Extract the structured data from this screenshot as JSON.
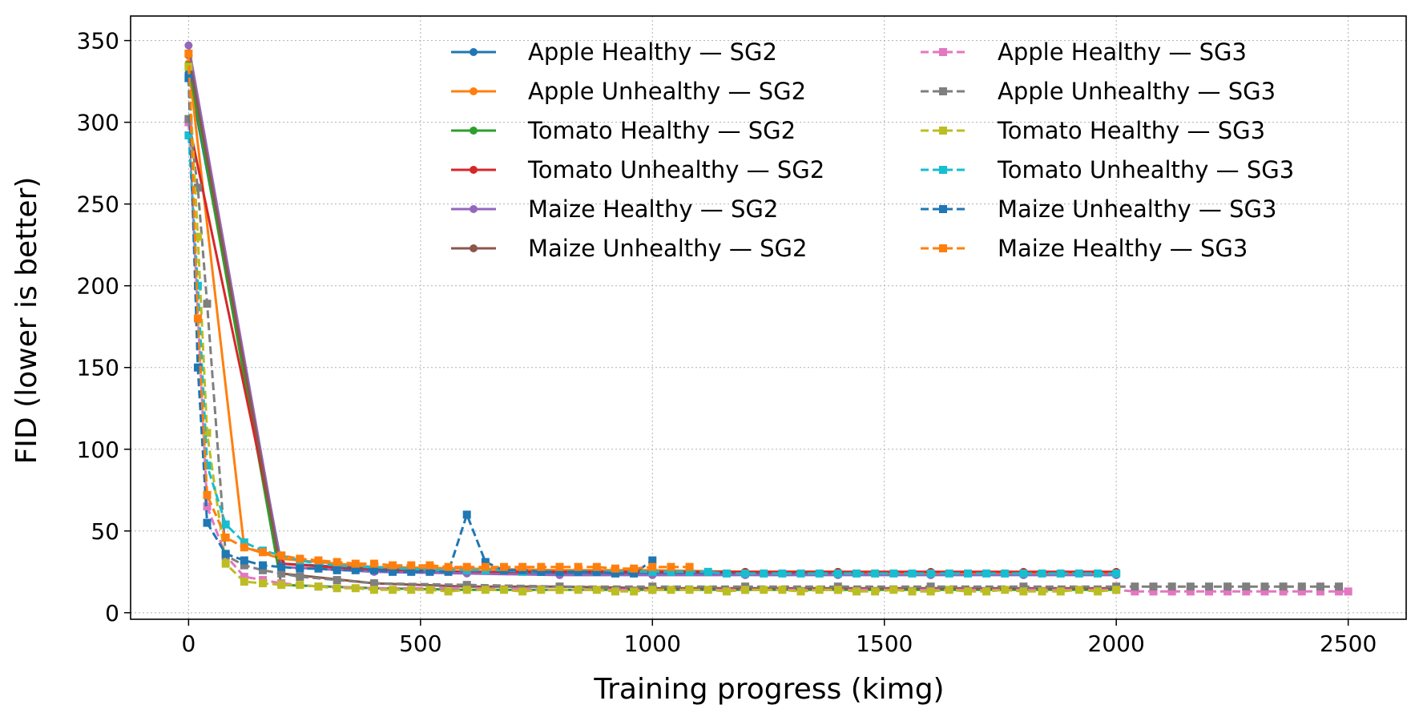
{
  "chart_data": {
    "type": "line",
    "title": "",
    "xlabel": "Training progress (kimg)",
    "ylabel": "FID (lower is better)",
    "xlim": [
      -125,
      2625
    ],
    "ylim": [
      -4,
      365
    ],
    "xticks": [
      0,
      500,
      1000,
      1500,
      2000,
      2500
    ],
    "yticks": [
      0,
      50,
      100,
      150,
      200,
      250,
      300,
      350
    ],
    "grid": true,
    "legend_position": "top-right",
    "legend_columns": 2,
    "series": [
      {
        "name": "Apple Healthy — SG2",
        "color": "#1f77b4",
        "style": "solid",
        "marker": "circle",
        "x": [
          0,
          200,
          400,
          600,
          800,
          1000,
          1200,
          1400,
          1600,
          1800,
          2000
        ],
        "y": [
          330,
          30,
          27,
          25,
          24,
          24,
          24,
          24,
          24,
          24,
          24
        ]
      },
      {
        "name": "Apple Unhealthy — SG2",
        "color": "#ff7f0e",
        "style": "solid",
        "marker": "circle",
        "x": [
          0,
          120,
          200,
          400,
          600,
          800,
          1000,
          1200,
          1400,
          1600,
          1800,
          2000
        ],
        "y": [
          336,
          40,
          33,
          28,
          27,
          26,
          26,
          25,
          25,
          24,
          24,
          24
        ]
      },
      {
        "name": "Tomato Healthy — SG2",
        "color": "#2ca02c",
        "style": "solid",
        "marker": "circle",
        "x": [
          0,
          200,
          400,
          600,
          800,
          1000,
          1200,
          1400,
          1600,
          1800,
          2000
        ],
        "y": [
          335,
          17,
          15,
          14,
          14,
          14,
          14,
          14,
          14,
          14,
          14
        ]
      },
      {
        "name": "Tomato Unhealthy — SG2",
        "color": "#d62728",
        "style": "solid",
        "marker": "circle",
        "x": [
          0,
          200,
          400,
          600,
          800,
          1000,
          1200,
          1400,
          1600,
          1800,
          2000
        ],
        "y": [
          300,
          30,
          26,
          25,
          25,
          25,
          25,
          25,
          25,
          25,
          25
        ]
      },
      {
        "name": "Maize Healthy — SG2",
        "color": "#9467bd",
        "style": "solid",
        "marker": "circle",
        "x": [
          0,
          200,
          400,
          600,
          800,
          1000,
          1200,
          1400,
          1600,
          1800,
          2000
        ],
        "y": [
          347,
          28,
          25,
          24,
          23,
          23,
          23,
          23,
          23,
          23,
          23
        ]
      },
      {
        "name": "Maize Unhealthy — SG2",
        "color": "#8c564b",
        "style": "solid",
        "marker": "circle",
        "x": [
          0,
          200,
          400,
          600,
          800,
          1000,
          1200,
          1400,
          1600,
          1800,
          2000
        ],
        "y": [
          341,
          24,
          18,
          16,
          16,
          15,
          15,
          15,
          15,
          15,
          15
        ]
      },
      {
        "name": "Apple Healthy — SG3",
        "color": "#e377c2",
        "style": "dashed",
        "marker": "square",
        "x": [
          0,
          40,
          80,
          120,
          160,
          200,
          280,
          400,
          600,
          800,
          1000,
          1200,
          1400,
          1600,
          1800,
          2000,
          2040,
          2080,
          2120,
          2160,
          2200,
          2240,
          2280,
          2320,
          2360,
          2400,
          2440,
          2480,
          2500
        ],
        "y": [
          300,
          65,
          35,
          22,
          20,
          18,
          16,
          15,
          15,
          14,
          14,
          14,
          14,
          14,
          14,
          14,
          13,
          13,
          13,
          13,
          13,
          13,
          13,
          13,
          13,
          13,
          13,
          13,
          13
        ]
      },
      {
        "name": "Apple Unhealthy — SG3",
        "color": "#7f7f7f",
        "style": "dashed",
        "marker": "square",
        "x": [
          0,
          20,
          40,
          80,
          120,
          160,
          200,
          240,
          320,
          400,
          600,
          800,
          1000,
          1200,
          1400,
          1600,
          1800,
          2000,
          2040,
          2080,
          2120,
          2160,
          2200,
          2240,
          2280,
          2320,
          2360,
          2400,
          2440,
          2480
        ],
        "y": [
          302,
          260,
          189,
          35,
          29,
          26,
          24,
          22,
          20,
          18,
          17,
          16,
          16,
          16,
          16,
          16,
          16,
          16,
          16,
          16,
          16,
          16,
          16,
          16,
          16,
          16,
          16,
          16,
          16,
          16
        ]
      },
      {
        "name": "Tomato Healthy — SG3",
        "color": "#bcbd22",
        "style": "dashed",
        "marker": "square",
        "x": [
          0,
          20,
          40,
          80,
          120,
          160,
          200,
          240,
          280,
          320,
          360,
          400,
          440,
          480,
          520,
          560,
          600,
          640,
          680,
          720,
          760,
          800,
          840,
          880,
          920,
          960,
          1000,
          1040,
          1080,
          1120,
          1160,
          1200,
          1240,
          1280,
          1320,
          1360,
          1400,
          1440,
          1480,
          1520,
          1560,
          1600,
          1640,
          1680,
          1720,
          1760,
          1800,
          1840,
          1880,
          1920,
          1960,
          2000
        ],
        "y": [
          334,
          230,
          110,
          30,
          19,
          18,
          17,
          17,
          16,
          15,
          15,
          14,
          14,
          14,
          14,
          13,
          14,
          14,
          14,
          13,
          14,
          14,
          14,
          14,
          13,
          13,
          14,
          14,
          14,
          14,
          13,
          14,
          14,
          14,
          13,
          14,
          14,
          13,
          13,
          14,
          13,
          13,
          14,
          13,
          13,
          14,
          13,
          13,
          13,
          14,
          13,
          14
        ]
      },
      {
        "name": "Tomato Unhealthy — SG3",
        "color": "#17becf",
        "style": "dashed",
        "marker": "square",
        "x": [
          0,
          20,
          40,
          80,
          120,
          160,
          200,
          240,
          280,
          320,
          360,
          400,
          440,
          480,
          520,
          560,
          600,
          640,
          680,
          720,
          760,
          800,
          840,
          880,
          920,
          960,
          1000,
          1040,
          1080,
          1120,
          1160,
          1200,
          1240,
          1280,
          1320,
          1360,
          1400,
          1440,
          1480,
          1520,
          1560,
          1600,
          1640,
          1680,
          1720,
          1760,
          1800,
          1840,
          1880,
          1920,
          1960,
          2000
        ],
        "y": [
          292,
          200,
          90,
          54,
          43,
          38,
          35,
          32,
          30,
          29,
          28,
          28,
          27,
          27,
          26,
          26,
          26,
          26,
          26,
          25,
          25,
          25,
          25,
          25,
          25,
          25,
          25,
          25,
          25,
          25,
          24,
          24,
          24,
          24,
          24,
          24,
          24,
          24,
          24,
          24,
          24,
          24,
          24,
          24,
          24,
          24,
          24,
          24,
          24,
          24,
          24,
          24
        ]
      },
      {
        "name": "Maize Unhealthy — SG3",
        "color": "#1f77b4",
        "style": "dashed",
        "marker": "square",
        "x": [
          0,
          20,
          40,
          80,
          120,
          160,
          200,
          240,
          280,
          320,
          360,
          400,
          440,
          480,
          520,
          560,
          600,
          640,
          680,
          720,
          760,
          800,
          840,
          880,
          920,
          960,
          1000
        ],
        "y": [
          327,
          150,
          55,
          36,
          32,
          29,
          28,
          27,
          27,
          26,
          26,
          26,
          25,
          25,
          25,
          25,
          60,
          31,
          26,
          26,
          25,
          25,
          25,
          25,
          24,
          24,
          32
        ]
      },
      {
        "name": "Maize Healthy — SG3",
        "color": "#ff7f0e",
        "style": "dashed",
        "marker": "square",
        "x": [
          0,
          20,
          40,
          80,
          120,
          160,
          200,
          240,
          280,
          320,
          360,
          400,
          440,
          480,
          520,
          560,
          600,
          640,
          680,
          720,
          760,
          800,
          840,
          880,
          920,
          960,
          1000,
          1040,
          1080
        ],
        "y": [
          342,
          180,
          72,
          46,
          40,
          37,
          35,
          33,
          32,
          31,
          30,
          30,
          29,
          29,
          29,
          28,
          28,
          28,
          28,
          28,
          28,
          28,
          28,
          28,
          27,
          27,
          28,
          28,
          28
        ]
      }
    ]
  }
}
